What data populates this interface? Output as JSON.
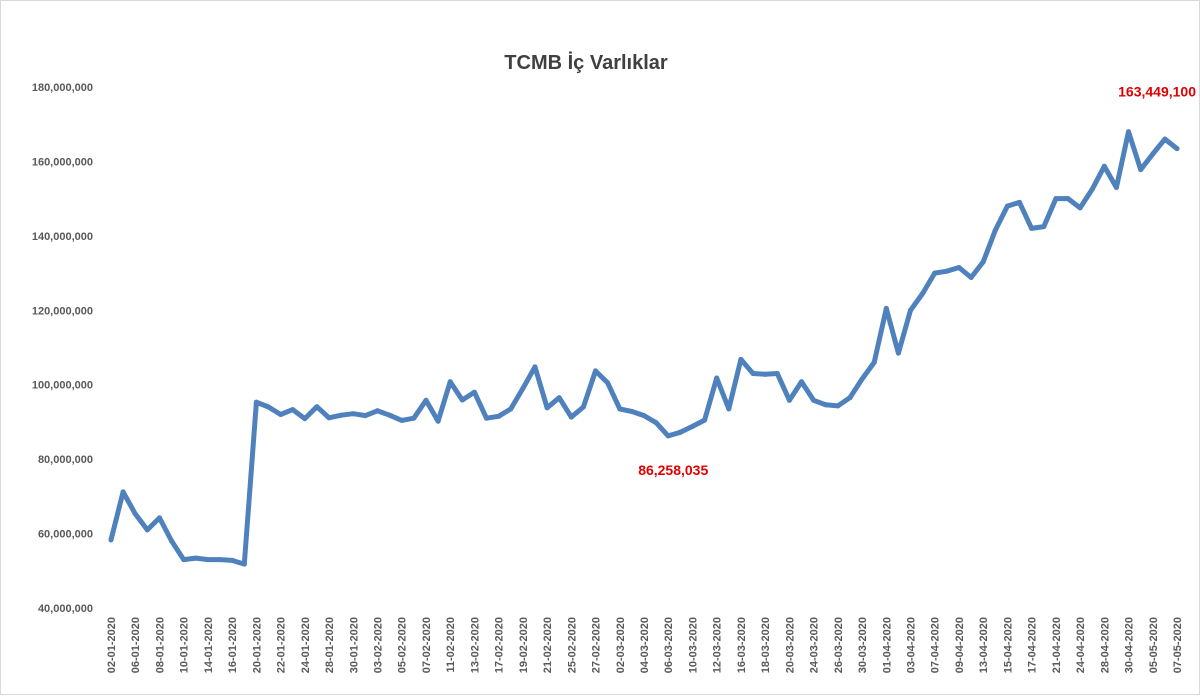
{
  "chart_data": {
    "type": "line",
    "title": "TCMB İç Varlıklar",
    "xlabel": "",
    "ylabel": "",
    "ylim": [
      40000000,
      180000000
    ],
    "yticks": [
      {
        "value": 40000000,
        "label": "40,000,000"
      },
      {
        "value": 60000000,
        "label": "60,000,000"
      },
      {
        "value": 80000000,
        "label": "80,000,000"
      },
      {
        "value": 100000000,
        "label": "100,000,000"
      },
      {
        "value": 120000000,
        "label": "120,000,000"
      },
      {
        "value": 140000000,
        "label": "140,000,000"
      },
      {
        "value": 160000000,
        "label": "160,000,000"
      },
      {
        "value": 180000000,
        "label": "180,000,000"
      }
    ],
    "grid": false,
    "legend": "none",
    "line_color": "#4f81bd",
    "annotation_color": "#e00000",
    "x": [
      "02-01-2020",
      "03-01-2020",
      "06-01-2020",
      "07-01-2020",
      "08-01-2020",
      "09-01-2020",
      "10-01-2020",
      "13-01-2020",
      "14-01-2020",
      "15-01-2020",
      "16-01-2020",
      "17-01-2020",
      "20-01-2020",
      "21-01-2020",
      "22-01-2020",
      "23-01-2020",
      "24-01-2020",
      "27-01-2020",
      "28-01-2020",
      "29-01-2020",
      "30-01-2020",
      "31-01-2020",
      "03-02-2020",
      "04-02-2020",
      "05-02-2020",
      "06-02-2020",
      "07-02-2020",
      "10-02-2020",
      "11-02-2020",
      "12-02-2020",
      "13-02-2020",
      "14-02-2020",
      "17-02-2020",
      "18-02-2020",
      "19-02-2020",
      "20-02-2020",
      "21-02-2020",
      "24-02-2020",
      "25-02-2020",
      "26-02-2020",
      "27-02-2020",
      "28-02-2020",
      "02-03-2020",
      "03-03-2020",
      "04-03-2020",
      "05-03-2020",
      "06-03-2020",
      "09-03-2020",
      "10-03-2020",
      "11-03-2020",
      "12-03-2020",
      "13-03-2020",
      "16-03-2020",
      "17-03-2020",
      "18-03-2020",
      "19-03-2020",
      "20-03-2020",
      "23-03-2020",
      "24-03-2020",
      "25-03-2020",
      "26-03-2020",
      "27-03-2020",
      "30-03-2020",
      "31-03-2020",
      "01-04-2020",
      "02-04-2020",
      "03-04-2020",
      "06-04-2020",
      "07-04-2020",
      "08-04-2020",
      "09-04-2020",
      "10-04-2020",
      "13-04-2020",
      "14-04-2020",
      "15-04-2020",
      "16-04-2020",
      "17-04-2020",
      "20-04-2020",
      "21-04-2020",
      "22-04-2020",
      "24-04-2020",
      "27-04-2020",
      "28-04-2020",
      "29-04-2020",
      "30-04-2020",
      "04-05-2020",
      "05-05-2020",
      "06-05-2020",
      "07-05-2020"
    ],
    "xtick_indices": [
      0,
      2,
      4,
      6,
      8,
      10,
      12,
      14,
      16,
      18,
      20,
      22,
      24,
      26,
      28,
      30,
      32,
      34,
      36,
      38,
      40,
      42,
      44,
      46,
      48,
      50,
      52,
      54,
      56,
      58,
      60,
      62,
      64,
      66,
      68,
      70,
      72,
      74,
      76,
      78,
      80,
      82,
      84,
      86,
      88
    ],
    "series": [
      {
        "name": "",
        "values": [
          58300000,
          71200000,
          65300000,
          61000000,
          64200000,
          58000000,
          53000000,
          53400000,
          53000000,
          53000000,
          52800000,
          51800000,
          95300000,
          94000000,
          92000000,
          93300000,
          90900000,
          94100000,
          91100000,
          91800000,
          92200000,
          91700000,
          93000000,
          91800000,
          90400000,
          91000000,
          95800000,
          90200000,
          100800000,
          95900000,
          98000000,
          91000000,
          91500000,
          93500000,
          99000000,
          104800000,
          93800000,
          96500000,
          91300000,
          94000000,
          103700000,
          100500000,
          93500000,
          92800000,
          91700000,
          89800000,
          86258035,
          87200000,
          88800000,
          90500000,
          101800000,
          93500000,
          106800000,
          103000000,
          102800000,
          103000000,
          95800000,
          100800000,
          95800000,
          94600000,
          94300000,
          96500000,
          101500000,
          106000000,
          120500000,
          108500000,
          120000000,
          124500000,
          130000000,
          130500000,
          131500000,
          128800000,
          133000000,
          141500000,
          148000000,
          149000000,
          142000000,
          142500000,
          150000000,
          150000000,
          147500000,
          152500000,
          158700000,
          153000000,
          168000000,
          157800000,
          162000000,
          166000000,
          163449100
        ]
      }
    ],
    "annotations": [
      {
        "index": 46,
        "value": 86258035,
        "label": "86,258,035"
      },
      {
        "index": 88,
        "value": 163449100,
        "label": "163,449,100"
      }
    ]
  }
}
